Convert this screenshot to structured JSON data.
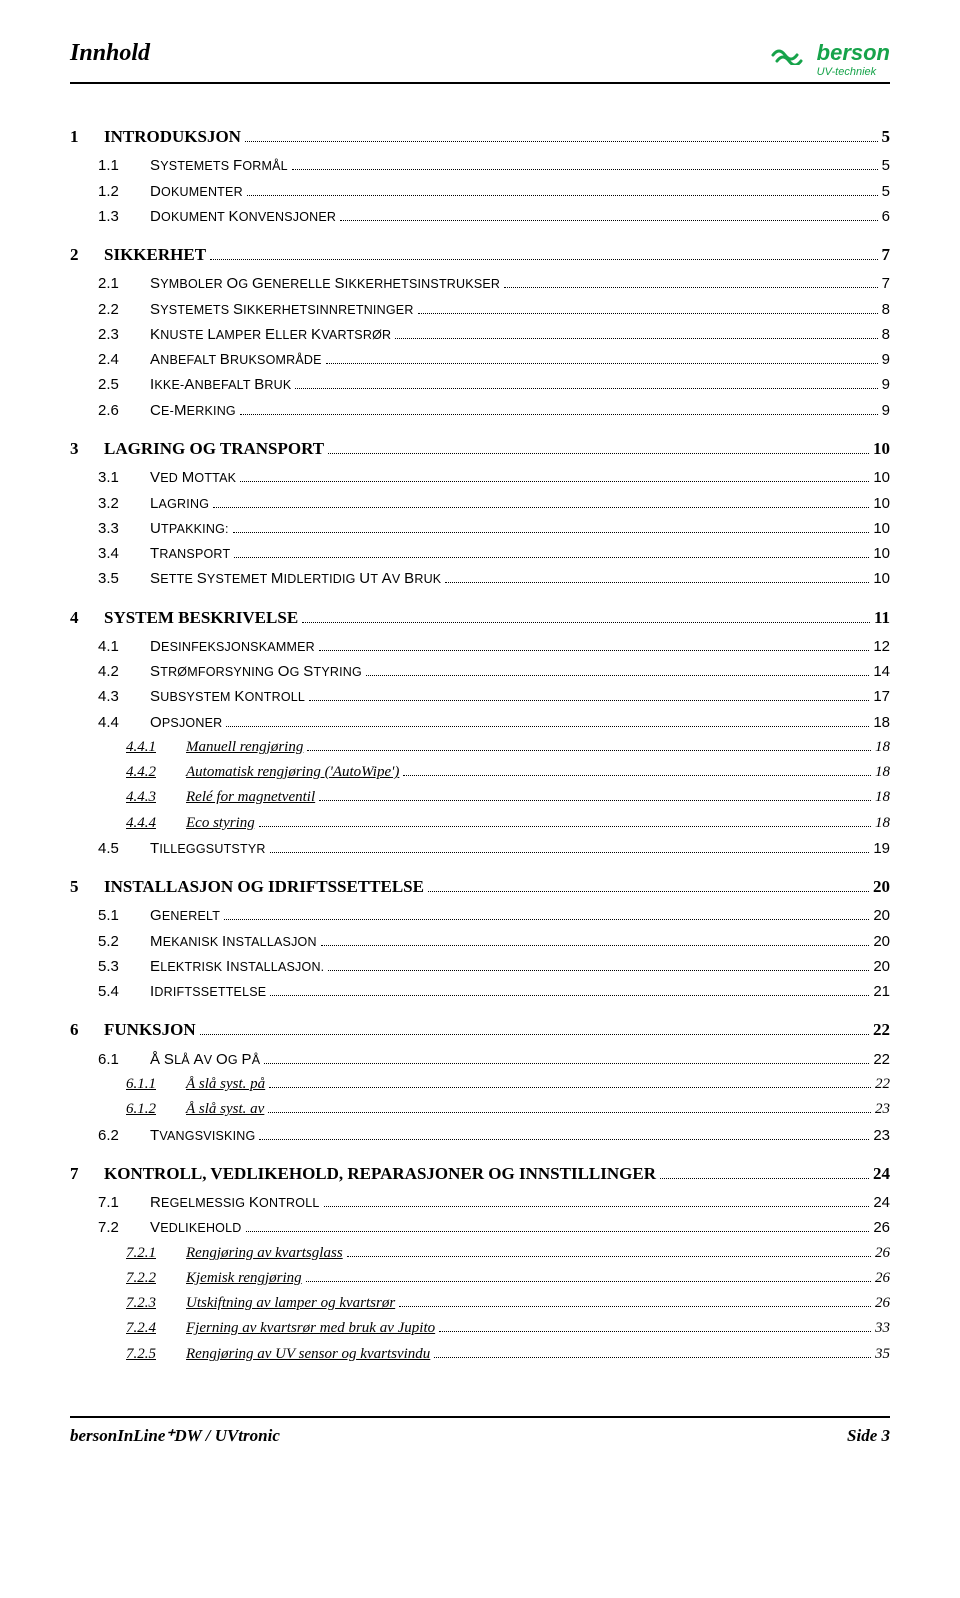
{
  "header": {
    "title": "Innhold"
  },
  "logo": {
    "brand": "berson",
    "subtitle": "UV-techniek",
    "wave_color": "#16a34a"
  },
  "footer": {
    "left": "bersonInLine⁺DW / UVtronic",
    "right": "Side 3"
  },
  "toc": [
    {
      "level": 1,
      "num": "1",
      "label": "INTRODUKSJON",
      "page": "5"
    },
    {
      "level": 2,
      "num": "1.1",
      "label": "SYSTEMETS FORMÅL",
      "page": "5"
    },
    {
      "level": 2,
      "num": "1.2",
      "label": "DOKUMENTER",
      "page": "5"
    },
    {
      "level": 2,
      "num": "1.3",
      "label": "DOKUMENT KONVENSJONER",
      "page": "6"
    },
    {
      "level": 1,
      "num": "2",
      "label": "SIKKERHET",
      "page": "7"
    },
    {
      "level": 2,
      "num": "2.1",
      "label": "SYMBOLER OG GENERELLE SIKKERHETSINSTRUKSER",
      "page": "7"
    },
    {
      "level": 2,
      "num": "2.2",
      "label": "SYSTEMETS SIKKERHETSINNRETNINGER",
      "page": "8"
    },
    {
      "level": 2,
      "num": "2.3",
      "label": "KNUSTE LAMPER ELLER KVARTSRØR",
      "page": "8"
    },
    {
      "level": 2,
      "num": "2.4",
      "label": "ANBEFALT BRUKSOMRÅDE",
      "page": "9"
    },
    {
      "level": 2,
      "num": "2.5",
      "label": "IKKE-ANBEFALT BRUK",
      "page": "9"
    },
    {
      "level": 2,
      "num": "2.6",
      "label": "CE-MERKING",
      "page": "9"
    },
    {
      "level": 1,
      "num": "3",
      "label": "LAGRING OG TRANSPORT",
      "page": "10"
    },
    {
      "level": 2,
      "num": "3.1",
      "label": "VED MOTTAK",
      "page": "10"
    },
    {
      "level": 2,
      "num": "3.2",
      "label": " LAGRING",
      "page": "10"
    },
    {
      "level": 2,
      "num": "3.3",
      "label": "UTPAKKING:",
      "page": "10"
    },
    {
      "level": 2,
      "num": "3.4",
      "label": "TRANSPORT",
      "page": "10"
    },
    {
      "level": 2,
      "num": "3.5",
      "label": "SETTE SYSTEMET MIDLERTIDIG UT AV BRUK",
      "page": "10"
    },
    {
      "level": 1,
      "num": "4",
      "label": "SYSTEM BESKRIVELSE",
      "page": "11"
    },
    {
      "level": 2,
      "num": "4.1",
      "label": "DESINFEKSJONSKAMMER",
      "page": "12"
    },
    {
      "level": 2,
      "num": "4.2",
      "label": "STRØMFORSYNING OG STYRING",
      "page": "14"
    },
    {
      "level": 2,
      "num": "4.3",
      "label": "SUBSYSTEM KONTROLL",
      "page": "17"
    },
    {
      "level": 2,
      "num": "4.4",
      "label": "OPSJONER",
      "page": "18"
    },
    {
      "level": 3,
      "num": "4.4.1",
      "label": "Manuell rengjøring",
      "page": "18"
    },
    {
      "level": 3,
      "num": "4.4.2",
      "label": "Automatisk rengjøring ('AutoWipe')",
      "page": "18"
    },
    {
      "level": 3,
      "num": "4.4.3",
      "label": "Relé for magnetventil",
      "page": "18"
    },
    {
      "level": 3,
      "num": "4.4.4",
      "label": "Eco styring",
      "page": "18"
    },
    {
      "level": 2,
      "num": "4.5",
      "label": "TILLEGGSUTSTYR",
      "page": "19"
    },
    {
      "level": 1,
      "num": "5",
      "label": "INSTALLASJON OG IDRIFTSSETTELSE",
      "page": "20"
    },
    {
      "level": 2,
      "num": "5.1",
      "label": "GENERELT",
      "page": "20"
    },
    {
      "level": 2,
      "num": "5.2",
      "label": "MEKANISK INSTALLASJON",
      "page": "20"
    },
    {
      "level": 2,
      "num": "5.3",
      "label": "ELEKTRISK INSTALLASJON.",
      "page": "20"
    },
    {
      "level": 2,
      "num": "5.4",
      "label": " IDRIFTSSETTELSE",
      "page": "21"
    },
    {
      "level": 1,
      "num": "6",
      "label": "FUNKSJON",
      "page": "22"
    },
    {
      "level": 2,
      "num": "6.1",
      "label": "Å SLÅ AV OG PÅ",
      "page": "22"
    },
    {
      "level": 3,
      "num": "6.1.1",
      "label": "Å slå syst. på",
      "page": "22"
    },
    {
      "level": 3,
      "num": "6.1.2",
      "label": "Å slå syst. av",
      "page": "23"
    },
    {
      "level": 2,
      "num": "6.2",
      "label": "TVANGSVISKING",
      "page": "23"
    },
    {
      "level": 1,
      "num": "7",
      "label": "KONTROLL, VEDLIKEHOLD, REPARASJONER OG INNSTILLINGER",
      "page": "24"
    },
    {
      "level": 2,
      "num": "7.1",
      "label": "REGELMESSIG KONTROLL",
      "page": "24"
    },
    {
      "level": 2,
      "num": "7.2",
      "label": "VEDLIKEHOLD",
      "page": "26"
    },
    {
      "level": 3,
      "num": "7.2.1",
      "label": "Rengjøring av kvartsglass",
      "page": "26"
    },
    {
      "level": 3,
      "num": "7.2.2",
      "label": "Kjemisk rengjøring",
      "page": "26"
    },
    {
      "level": 3,
      "num": "7.2.3",
      "label": "Utskiftning av lamper og kvartsrør",
      "page": "26"
    },
    {
      "level": 3,
      "num": "7.2.4",
      "label": "Fjerning av kvartsrør med bruk av Jupito",
      "page": "33"
    },
    {
      "level": 3,
      "num": "7.2.5",
      "label": "Rengjøring av UV sensor og kvartsvindu",
      "page": "35"
    }
  ]
}
